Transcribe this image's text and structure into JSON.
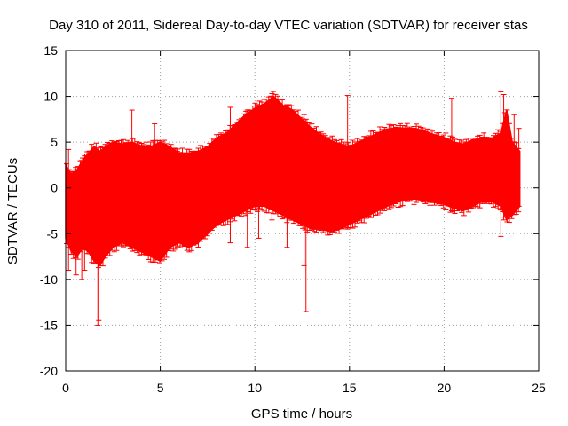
{
  "chart_data": {
    "type": "scatter",
    "title": "Day 310 of 2011, Sidereal Day-to-day VTEC variation (SDTVAR) for receiver stas",
    "xlabel": "GPS time / hours",
    "ylabel": "SDTVAR / TECUs",
    "xlim": [
      0,
      25
    ],
    "ylim": [
      -20,
      15
    ],
    "xticks": [
      0,
      5,
      10,
      15,
      20,
      25
    ],
    "yticks": [
      -20,
      -15,
      -10,
      -5,
      0,
      5,
      10,
      15
    ],
    "grid": true,
    "series": [
      {
        "name": "SDTVAR",
        "color": "#ff0000",
        "marker": "plus-errorbar",
        "envelope": {
          "x": [
            0.0,
            0.3,
            0.6,
            0.9,
            1.2,
            1.5,
            1.8,
            2.1,
            2.5,
            3.0,
            3.5,
            4.0,
            4.5,
            5.0,
            5.5,
            6.0,
            6.5,
            7.0,
            7.5,
            8.0,
            8.5,
            9.0,
            9.5,
            10.0,
            10.5,
            11.0,
            11.5,
            12.0,
            12.5,
            13.0,
            13.5,
            14.0,
            14.5,
            15.0,
            15.5,
            16.0,
            16.5,
            17.0,
            17.5,
            18.0,
            18.5,
            19.0,
            19.5,
            20.0,
            20.5,
            21.0,
            21.5,
            22.0,
            22.5,
            23.0,
            23.3,
            23.6,
            24.0
          ],
          "upper": [
            2.5,
            1.5,
            2.0,
            3.0,
            3.8,
            4.5,
            4.0,
            4.5,
            5.0,
            4.8,
            5.0,
            4.6,
            4.5,
            5.0,
            4.5,
            3.8,
            3.8,
            4.0,
            4.5,
            5.5,
            6.0,
            7.0,
            8.0,
            8.7,
            9.2,
            10.0,
            9.0,
            8.5,
            7.5,
            6.5,
            5.8,
            5.2,
            4.8,
            4.5,
            5.0,
            5.5,
            6.0,
            6.4,
            6.6,
            6.5,
            6.5,
            6.2,
            5.8,
            5.5,
            5.0,
            4.8,
            5.2,
            5.5,
            5.4,
            6.0,
            8.5,
            5.0,
            4.0
          ],
          "lower": [
            -5.5,
            -7.0,
            -7.5,
            -6.5,
            -7.0,
            -8.0,
            -8.5,
            -7.5,
            -6.5,
            -6.0,
            -6.5,
            -7.0,
            -7.5,
            -8.0,
            -6.5,
            -6.0,
            -6.5,
            -6.0,
            -5.0,
            -4.0,
            -3.5,
            -3.0,
            -2.5,
            -2.0,
            -2.0,
            -2.5,
            -3.0,
            -3.5,
            -4.0,
            -4.5,
            -4.5,
            -4.8,
            -4.5,
            -4.0,
            -3.5,
            -3.0,
            -2.5,
            -2.0,
            -1.6,
            -1.3,
            -1.2,
            -1.4,
            -1.6,
            -1.8,
            -2.2,
            -2.5,
            -2.0,
            -1.5,
            -1.5,
            -2.0,
            -3.5,
            -3.0,
            -2.0
          ]
        },
        "spikes": [
          {
            "x": 0.15,
            "low": -9.0,
            "high": 4.2
          },
          {
            "x": 0.55,
            "low": -9.5,
            "high": 2.0
          },
          {
            "x": 0.85,
            "low": -10.0,
            "high": 3.0
          },
          {
            "x": 1.0,
            "low": -9.0,
            "high": 3.5
          },
          {
            "x": 1.7,
            "low": -15.0,
            "high": 4.0
          },
          {
            "x": 1.75,
            "low": -14.5,
            "high": 3.5
          },
          {
            "x": 3.5,
            "low": -6.5,
            "high": 8.5
          },
          {
            "x": 4.7,
            "low": -7.5,
            "high": 7.0
          },
          {
            "x": 5.9,
            "low": -6.5,
            "high": 4.0
          },
          {
            "x": 8.7,
            "low": -6.0,
            "high": 8.8
          },
          {
            "x": 9.6,
            "low": -6.5,
            "high": 8.5
          },
          {
            "x": 10.2,
            "low": -5.5,
            "high": 9.0
          },
          {
            "x": 10.9,
            "low": -3.5,
            "high": 10.3
          },
          {
            "x": 11.7,
            "low": -6.5,
            "high": 9.0
          },
          {
            "x": 12.6,
            "low": -8.5,
            "high": 8.0
          },
          {
            "x": 12.7,
            "low": -13.5,
            "high": 7.5
          },
          {
            "x": 14.9,
            "low": -4.5,
            "high": 10.1
          },
          {
            "x": 20.4,
            "low": -2.5,
            "high": 9.8
          },
          {
            "x": 22.1,
            "low": -1.5,
            "high": 6.0
          },
          {
            "x": 23.0,
            "low": -5.3,
            "high": 10.5
          },
          {
            "x": 23.15,
            "low": -3.5,
            "high": 10.2
          },
          {
            "x": 23.7,
            "low": -2.5,
            "high": 8.0
          },
          {
            "x": 23.95,
            "low": -2.0,
            "high": 6.5
          }
        ]
      }
    ]
  }
}
